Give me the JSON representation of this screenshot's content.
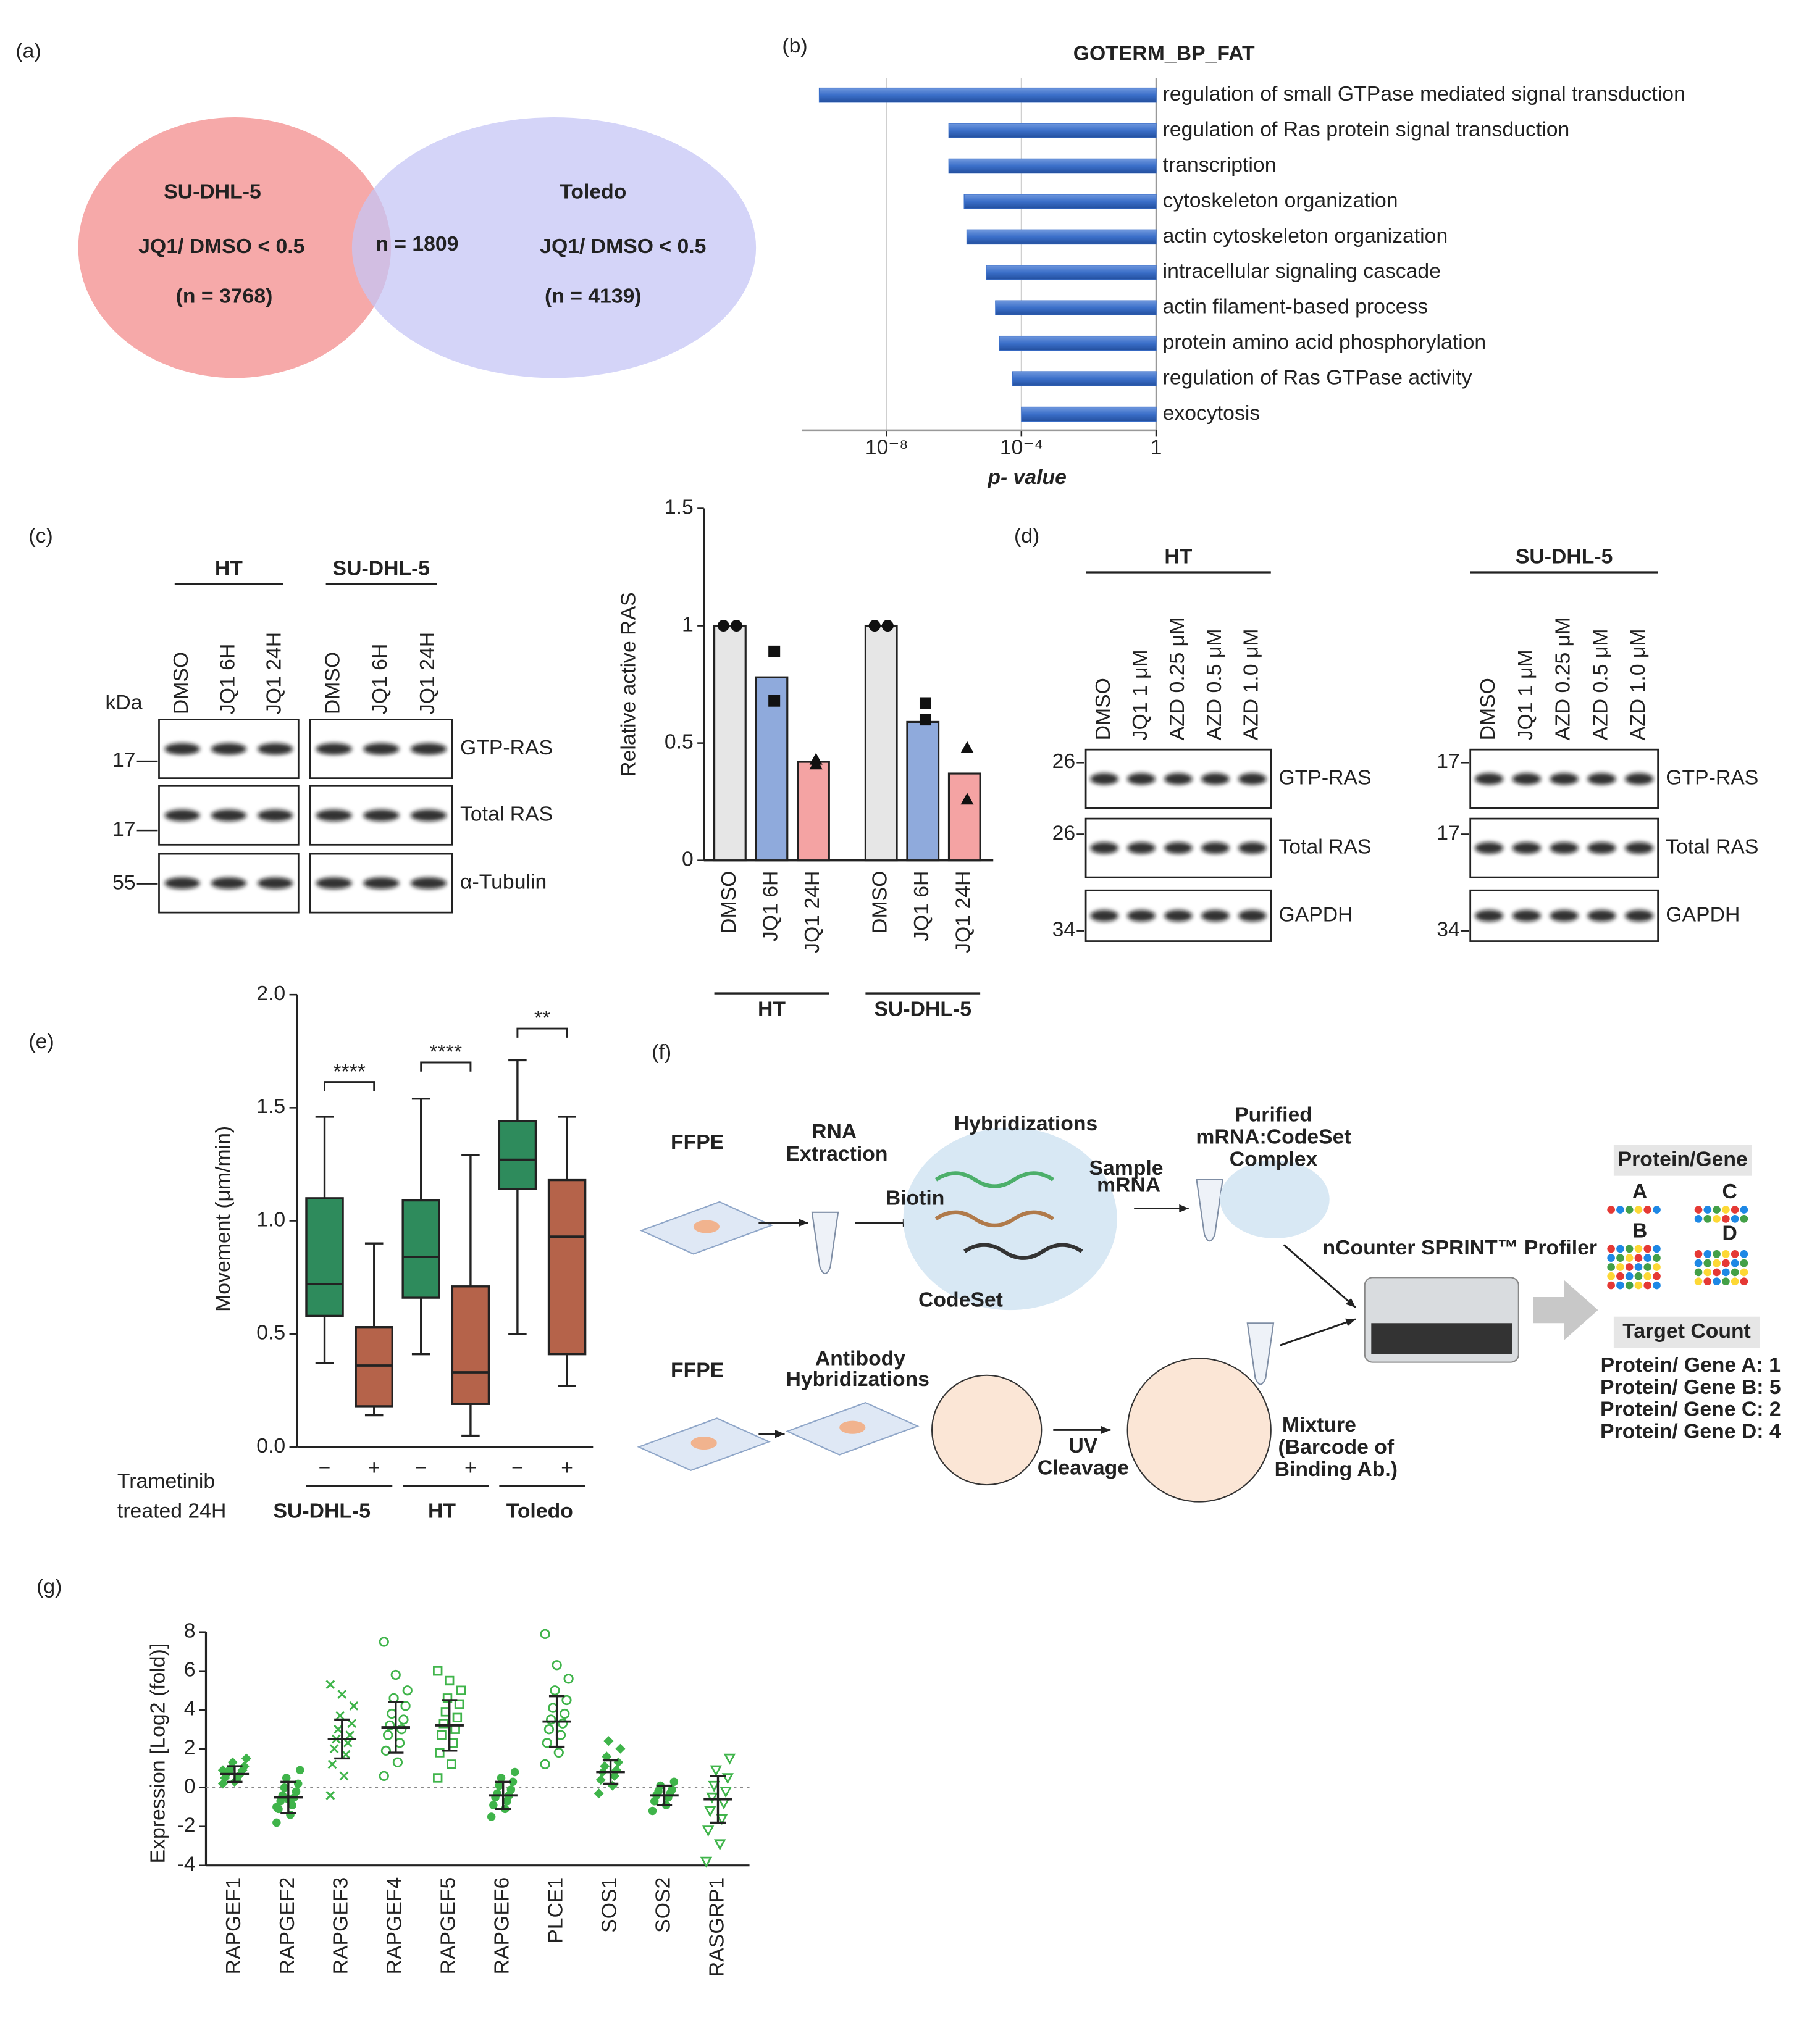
{
  "panel_labels": [
    "(a)",
    "(b)",
    "(c)",
    "(d)",
    "(e)",
    "(f)",
    "(g)"
  ],
  "venn": {
    "left": {
      "name": "SU-DHL-5",
      "criterion": "JQ1/ DMSO < 0.5",
      "count": "(n = 3768)"
    },
    "overlap": "n = 1809",
    "right": {
      "name": "Toledo",
      "criterion": "JQ1/ DMSO < 0.5",
      "count": "(n = 4139)"
    }
  },
  "blots_c": {
    "unit": "kDa",
    "rows": [
      "GTP-RAS",
      "Total RAS",
      "α-Tubulin"
    ],
    "groups": [
      {
        "name": "HT",
        "lanes": [
          "DMSO",
          "JQ1 6H",
          "JQ1 24H"
        ],
        "markers": [
          "17",
          "17",
          "55"
        ]
      },
      {
        "name": "SU-DHL-5",
        "lanes": [
          "DMSO",
          "JQ1 6H",
          "JQ1 24H"
        ]
      }
    ]
  },
  "blots_d": {
    "rows": [
      "GTP-RAS",
      "Total RAS",
      "GAPDH"
    ],
    "groups": [
      {
        "name": "HT",
        "lanes": [
          "DMSO",
          "JQ1 1 μM",
          "AZD 0.25 μM",
          "AZD 0.5 μM",
          "AZD 1.0 μM"
        ],
        "markers": [
          "26",
          "26",
          "34"
        ]
      },
      {
        "name": "SU-DHL-5",
        "lanes": [
          "DMSO",
          "JQ1 1 μM",
          "AZD 0.25 μM",
          "AZD 0.5 μM",
          "AZD 1.0 μM"
        ],
        "markers": [
          "17",
          "17",
          "34"
        ]
      }
    ]
  },
  "diagram": {
    "rna_branch": {
      "sample": "FFPE",
      "step1": [
        "RNA",
        "Extraction"
      ],
      "step2": "Hybridizations",
      "probe_labels": [
        "Sample",
        "mRNA"
      ],
      "biotin": "Biotin",
      "codeset": "CodeSet",
      "step3": [
        "Purified",
        "mRNA:CodeSet",
        "Complex"
      ]
    },
    "protein_branch": {
      "sample": "FFPE",
      "step1": [
        "Antibody",
        "Hybridizations"
      ],
      "step2": [
        "UV",
        "Cleavage"
      ],
      "step3": "Mixture",
      "step3_note": [
        "(Barcode of",
        "Binding Ab.)"
      ]
    },
    "instrument": "nCounter SPRINT™ Profiler",
    "output": {
      "title": "Protein/Gene",
      "genes": [
        "A",
        "B",
        "C",
        "D"
      ],
      "count_title": "Target Count",
      "counts": [
        "Protein/ Gene A: 1",
        "Protein/ Gene B: 5",
        "Protein/ Gene C: 2",
        "Protein/ Gene D: 4"
      ]
    }
  },
  "chart_data": [
    {
      "type": "barh",
      "title": "GOTERM_BP_FAT",
      "categories": [
        "regulation of small GTPase mediated signal transduction",
        "regulation of Ras protein signal transduction",
        "transcription",
        "cytoskeleton organization",
        "actin cytoskeleton organization",
        "intracellular signaling cascade",
        "actin filament-based process",
        "protein amino acid phosphorylation",
        "regulation of Ras GTPase activity",
        "exocytosis"
      ],
      "values": [
        1e-10,
        7e-07,
        7e-07,
        2e-06,
        2.4e-06,
        9e-06,
        1.7e-05,
        2.2e-05,
        5.4e-05,
        0.0001
      ],
      "color": "#3b6fc9",
      "category_colors": [
        "#d4202c",
        "#d4202c",
        "#222222",
        "#222222",
        "#222222",
        "#222222",
        "#222222",
        "#222222",
        "#d4202c",
        "#222222"
      ],
      "xscale": "log",
      "xlim": [
        3e-11,
        1
      ],
      "xticks": [
        {
          "value": 1e-08,
          "label": "10⁻⁸"
        },
        {
          "value": 0.0001,
          "label": "10⁻⁴"
        },
        1
      ],
      "grid": true,
      "xlabel": "p- value"
    },
    {
      "type": "bar",
      "ylabel": "Relative active RAS",
      "categories": [
        "DMSO",
        "JQ1 6H",
        "JQ1 24H",
        "DMSO",
        "JQ1 6H",
        "JQ1 24H"
      ],
      "groups": [
        "HT",
        "SU-DHL-5"
      ],
      "values": [
        1,
        0.78,
        0.42,
        1,
        0.59,
        0.37
      ],
      "colors": [
        "#e6e6e6",
        "#8faadc",
        "#f4a3a3",
        "#e6e6e6",
        "#8faadc",
        "#f4a3a3"
      ],
      "points": [
        [
          1,
          1
        ],
        [
          0.89,
          0.68
        ],
        [
          0.43,
          0.41
        ],
        [
          1,
          1
        ],
        [
          0.67,
          0.6
        ],
        [
          0.48,
          0.26
        ]
      ],
      "markers": [
        "circle",
        "square",
        "triangle",
        "circle",
        "square",
        "triangle"
      ],
      "ylim": [
        0,
        1.5
      ],
      "yticks": [
        0,
        0.5,
        1,
        1.5
      ]
    },
    {
      "type": "box",
      "ylabel": "Movement (μm/min)",
      "categories": [
        "−",
        "+",
        "−",
        "+",
        "−",
        "+"
      ],
      "groups": [
        "SU-DHL-5",
        "HT",
        "Toledo"
      ],
      "group_axis_label": [
        "Trametinib",
        "treated 24H"
      ],
      "boxes": [
        {
          "min": 0.37,
          "q1": 0.58,
          "median": 0.72,
          "q3": 1.1,
          "max": 1.46
        },
        {
          "min": 0.14,
          "q1": 0.18,
          "median": 0.36,
          "q3": 0.53,
          "max": 0.9
        },
        {
          "min": 0.41,
          "q1": 0.66,
          "median": 0.84,
          "q3": 1.09,
          "max": 1.54
        },
        {
          "min": 0.05,
          "q1": 0.19,
          "median": 0.33,
          "q3": 0.71,
          "max": 1.29
        },
        {
          "min": 0.5,
          "q1": 1.14,
          "median": 1.27,
          "q3": 1.44,
          "max": 1.71
        },
        {
          "min": 0.27,
          "q1": 0.41,
          "median": 0.93,
          "q3": 1.18,
          "max": 1.46
        }
      ],
      "colors": [
        "#2e8b5c",
        "#b5634a",
        "#2e8b5c",
        "#b5634a",
        "#2e8b5c",
        "#b5634a"
      ],
      "significance": [
        "****",
        "****",
        "**"
      ],
      "ylim": [
        0,
        2
      ],
      "yticks": [
        {
          "value": 0,
          "label": "0.0"
        },
        {
          "value": 0.5,
          "label": "0.5"
        },
        {
          "value": 1,
          "label": "1.0"
        },
        {
          "value": 1.5,
          "label": "1.5"
        },
        {
          "value": 2,
          "label": "2.0"
        }
      ]
    },
    {
      "type": "strip",
      "ylabel": "Expression [Log2 (fold)]",
      "categories": [
        "RAPGEF1",
        "RAPGEF2",
        "RAPGEF3",
        "RAPGEF4",
        "RAPGEF5",
        "RAPGEF6",
        "PLCE1",
        "SOS1",
        "SOS2",
        "RASGRP1"
      ],
      "points": [
        [
          0.2,
          0.4,
          0.5,
          0.6,
          0.7,
          0.7,
          0.8,
          0.9,
          1.0,
          1.1,
          1.3,
          1.5,
          0.3,
          0.9
        ],
        [
          -1.8,
          -1.4,
          -1.1,
          -0.9,
          -0.7,
          -0.5,
          -0.4,
          -0.2,
          0,
          0.2,
          0.5,
          0.9,
          -0.6,
          -1.0
        ],
        [
          -0.4,
          0.6,
          1.2,
          1.7,
          2.0,
          2.3,
          2.5,
          2.7,
          3.0,
          3.3,
          3.7,
          4.2,
          4.8,
          5.3
        ],
        [
          0.6,
          1.3,
          1.9,
          2.3,
          2.7,
          3.0,
          3.2,
          3.5,
          3.8,
          4.2,
          4.6,
          5.0,
          5.8,
          7.5
        ],
        [
          0.5,
          1.2,
          1.8,
          2.3,
          2.7,
          3.0,
          3.3,
          3.6,
          3.9,
          4.3,
          4.6,
          5.0,
          5.5,
          6.0
        ],
        [
          -1.5,
          -1.1,
          -0.9,
          -0.7,
          -0.5,
          -0.4,
          -0.3,
          -0.1,
          0.1,
          0.3,
          0.5,
          0.8
        ],
        [
          1.2,
          1.8,
          2.3,
          2.7,
          3.0,
          3.3,
          3.5,
          3.8,
          4.1,
          4.5,
          5.0,
          5.6,
          6.3,
          7.9
        ],
        [
          -0.3,
          0.1,
          0.4,
          0.6,
          0.8,
          0.9,
          1.1,
          1.3,
          1.6,
          2.0,
          2.4
        ],
        [
          -1.2,
          -0.9,
          -0.7,
          -0.5,
          -0.4,
          -0.3,
          -0.2,
          -0.1,
          0.1,
          0.3
        ],
        [
          -3.8,
          -2.9,
          -2.2,
          -1.6,
          -1.2,
          -0.8,
          -0.5,
          -0.2,
          0.1,
          0.5,
          0.9,
          1.5
        ]
      ],
      "means": [
        0.7,
        -0.5,
        2.5,
        3.1,
        3.2,
        -0.4,
        3.4,
        0.8,
        -0.4,
        -0.6
      ],
      "sds": [
        0.4,
        0.8,
        1.0,
        1.3,
        1.3,
        0.7,
        1.3,
        0.6,
        0.5,
        1.2
      ],
      "markers": [
        "diamond",
        "dot",
        "cross",
        "ring",
        "square",
        "dot",
        "ring",
        "diamond",
        "dot",
        "triangle"
      ],
      "color": "#3fb44a",
      "ylim": [
        -4,
        8
      ],
      "yticks": [
        -4,
        -2,
        0,
        2,
        4,
        6,
        8
      ],
      "zero_line": true
    }
  ]
}
